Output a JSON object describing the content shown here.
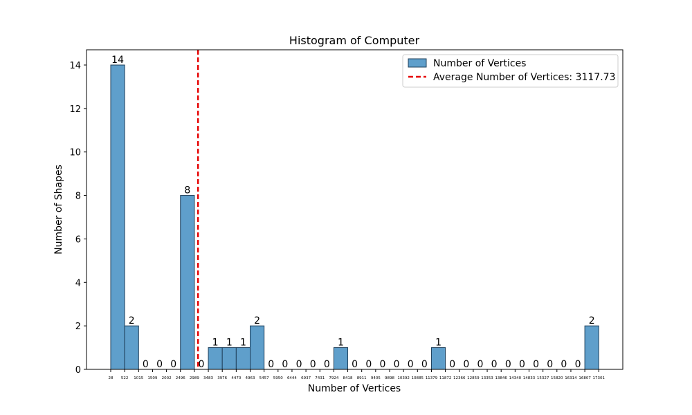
{
  "chart_data": {
    "type": "bar",
    "title": "Histogram of Computer",
    "xlabel": "Number of Vertices",
    "ylabel": "Number of Shapes",
    "ylim": [
      0,
      14.7
    ],
    "yticks": [
      0,
      2,
      4,
      6,
      8,
      10,
      12,
      14
    ],
    "grid": false,
    "legend_placement": "top-right",
    "bar_color": "#5f9fcb",
    "bar_edge_color": "#1f3f5a",
    "mean_line_color": "#e60000",
    "bin_edges": [
      "28",
      "522",
      "1015",
      "1509",
      "2002",
      "2496",
      "2989",
      "3483",
      "3976",
      "4470",
      "4963",
      "5457",
      "5950",
      "6444",
      "6937",
      "7431",
      "7924",
      "8418",
      "8911",
      "9405",
      "9898",
      "10392",
      "10885",
      "11379",
      "11872",
      "12366",
      "12859",
      "13353",
      "13846",
      "14340",
      "14833",
      "15327",
      "15820",
      "16314",
      "16807",
      "17301"
    ],
    "bin_edge_values": [
      28,
      522,
      1015,
      1509,
      2002,
      2496,
      2989,
      3483,
      3976,
      4470,
      4963,
      5457,
      5950,
      6444,
      6937,
      7431,
      7924,
      8418,
      8911,
      9405,
      9898,
      10392,
      10885,
      11379,
      11872,
      12366,
      12859,
      13353,
      13846,
      14340,
      14833,
      15327,
      15820,
      16314,
      16807,
      17301
    ],
    "values": [
      14,
      2,
      0,
      0,
      0,
      8,
      0,
      1,
      1,
      1,
      2,
      0,
      0,
      0,
      0,
      0,
      1,
      0,
      0,
      0,
      0,
      0,
      0,
      1,
      0,
      0,
      0,
      0,
      0,
      0,
      0,
      0,
      0,
      0,
      2
    ],
    "series": [
      {
        "name": "Number of Vertices"
      }
    ],
    "mean": {
      "value": 3117.73,
      "label": "Average Number of Vertices: 3117.73"
    }
  }
}
